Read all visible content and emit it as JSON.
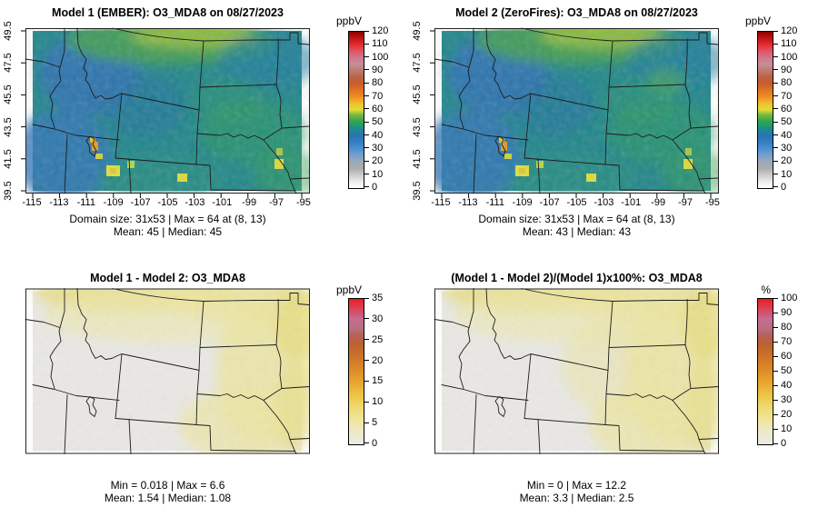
{
  "panels": [
    {
      "title": "Model 1 (EMBER): O3_MDA8 on 08/27/2023",
      "colorbar_unit": "ppbV",
      "x_tick_labels": [
        "-115",
        "-113",
        "-111",
        "-109",
        "-107",
        "-105",
        "-103",
        "-101",
        "-99",
        "-97",
        "-95"
      ],
      "y_tick_labels_top_to_bottom": [
        "49.5",
        "47.5",
        "45.5",
        "43.5",
        "41.5",
        "39.5"
      ],
      "colorbar_tick_labels_top_to_bottom": [
        "120",
        "110",
        "100",
        "90",
        "80",
        "70",
        "60",
        "50",
        "40",
        "30",
        "20",
        "10",
        "0"
      ],
      "stats_line1": "Domain size: 31x53 | Max = 64 at (8, 13)",
      "stats_line2": "Mean: 45 |  Median: 45"
    },
    {
      "title": "Model 2 (ZeroFires): O3_MDA8 on 08/27/2023",
      "colorbar_unit": "ppbV",
      "x_tick_labels": [
        "-115",
        "-113",
        "-111",
        "-109",
        "-107",
        "-105",
        "-103",
        "-101",
        "-99",
        "-97",
        "-95"
      ],
      "y_tick_labels_top_to_bottom": [
        "49.5",
        "47.5",
        "45.5",
        "43.5",
        "41.5",
        "39.5"
      ],
      "colorbar_tick_labels_top_to_bottom": [
        "120",
        "110",
        "100",
        "90",
        "80",
        "70",
        "60",
        "50",
        "40",
        "30",
        "20",
        "10",
        "0"
      ],
      "stats_line1": "Domain size: 31x53 | Max = 64 at (8, 13)",
      "stats_line2": "Mean: 43 |  Median: 43"
    },
    {
      "title": "Model 1 - Model 2: O3_MDA8",
      "colorbar_unit": "ppbV",
      "colorbar_tick_labels_top_to_bottom": [
        "35",
        "30",
        "25",
        "20",
        "15",
        "10",
        "5",
        "0"
      ],
      "stats_line1": "Min = 0.018 | Max = 6.6",
      "stats_line2": "Mean: 1.54 |  Median: 1.08"
    },
    {
      "title": "(Model 1 - Model 2)/(Model 1)x100%: O3_MDA8",
      "colorbar_unit": "%",
      "colorbar_tick_labels_top_to_bottom": [
        "100",
        "90",
        "80",
        "70",
        "60",
        "50",
        "40",
        "30",
        "20",
        "10",
        "0"
      ],
      "stats_line1": "Min = 0 | Max = 12.2",
      "stats_line2": "Mean: 3.3 |  Median: 2.5"
    }
  ],
  "chart_data": [
    {
      "type": "heatmap",
      "title": "Model 1 (EMBER): O3_MDA8 on 08/27/2023",
      "variable": "O3_MDA8",
      "model": "Model 1 (EMBER)",
      "date": "08/27/2023",
      "x_axis": {
        "meaning": "longitude",
        "ticks": [
          -115,
          -113,
          -111,
          -109,
          -107,
          -105,
          -103,
          -101,
          -99,
          -97,
          -95
        ],
        "range": [
          -115,
          -95
        ]
      },
      "y_axis": {
        "meaning": "latitude",
        "ticks": [
          39.5,
          41.5,
          43.5,
          45.5,
          47.5,
          49.5
        ],
        "range": [
          39.5,
          49.5
        ]
      },
      "colorbar": {
        "units": "ppbV",
        "min": 0,
        "max": 120,
        "tick_step": 10,
        "position": "right",
        "colors_low_to_high": [
          "#ffffff",
          "#acacac",
          "#4d92d3",
          "#2b73b4",
          "#209a70",
          "#dcde36",
          "#ed8926",
          "#c75d2a",
          "#c78f92",
          "#e63c45",
          "#8c0000"
        ]
      },
      "stats": {
        "domain_size": "31x53",
        "max": 64,
        "max_at": "(8, 13)",
        "mean": 45,
        "median": 45
      },
      "map_region": "US northern Rockies / Great Plains (Idaho, Montana, Wyoming, Dakotas, Nebraska)",
      "grid": false
    },
    {
      "type": "heatmap",
      "title": "Model 2 (ZeroFires): O3_MDA8 on 08/27/2023",
      "variable": "O3_MDA8",
      "model": "Model 2 (ZeroFires)",
      "date": "08/27/2023",
      "x_axis": {
        "meaning": "longitude",
        "ticks": [
          -115,
          -113,
          -111,
          -109,
          -107,
          -105,
          -103,
          -101,
          -99,
          -97,
          -95
        ],
        "range": [
          -115,
          -95
        ]
      },
      "y_axis": {
        "meaning": "latitude",
        "ticks": [
          39.5,
          41.5,
          43.5,
          45.5,
          47.5,
          49.5
        ],
        "range": [
          39.5,
          49.5
        ]
      },
      "colorbar": {
        "units": "ppbV",
        "min": 0,
        "max": 120,
        "tick_step": 10,
        "position": "right",
        "colors_low_to_high": [
          "#ffffff",
          "#acacac",
          "#4d92d3",
          "#2b73b4",
          "#209a70",
          "#dcde36",
          "#ed8926",
          "#c75d2a",
          "#c78f92",
          "#e63c45",
          "#8c0000"
        ]
      },
      "stats": {
        "domain_size": "31x53",
        "max": 64,
        "max_at": "(8, 13)",
        "mean": 43,
        "median": 43
      },
      "map_region": "US northern Rockies / Great Plains (Idaho, Montana, Wyoming, Dakotas, Nebraska)",
      "grid": false
    },
    {
      "type": "heatmap",
      "title": "Model 1 - Model 2: O3_MDA8",
      "variable": "O3_MDA8 difference",
      "x_axis": {
        "meaning": "longitude",
        "ticks": [],
        "range": [
          -115,
          -95
        ]
      },
      "y_axis": {
        "meaning": "latitude",
        "ticks": [],
        "range": [
          39.5,
          49.5
        ]
      },
      "colorbar": {
        "units": "ppbV",
        "min": 0,
        "max": 35,
        "tick_step": 5,
        "position": "right",
        "colors_low_to_high": [
          "#ebebe7",
          "#f0e59b",
          "#ecc443",
          "#dc8c28",
          "#bd6132",
          "#ba6f82",
          "#d44f6b",
          "#e81a26"
        ]
      },
      "stats": {
        "min": 0.018,
        "max": 6.6,
        "mean": 1.54,
        "median": 1.08
      },
      "pattern": "largest differences (pale yellow) over northern Montana and eastern Dakotas/Nebraska; near-zero (gray) over Idaho, Wyoming, Utah",
      "grid": false
    },
    {
      "type": "heatmap",
      "title": "(Model 1 - Model 2)/(Model 1)x100%: O3_MDA8",
      "variable": "O3_MDA8 percent difference",
      "x_axis": {
        "meaning": "longitude",
        "ticks": [],
        "range": [
          -115,
          -95
        ]
      },
      "y_axis": {
        "meaning": "latitude",
        "ticks": [],
        "range": [
          39.5,
          49.5
        ]
      },
      "colorbar": {
        "units": "%",
        "min": 0,
        "max": 100,
        "tick_step": 10,
        "position": "right",
        "colors_low_to_high": [
          "#ebebe7",
          "#f0e59b",
          "#ecc443",
          "#dc8c28",
          "#bd6132",
          "#ba6f82",
          "#d44f6b",
          "#e81a26"
        ]
      },
      "stats": {
        "min": 0,
        "max": 12.2,
        "mean": 3.3,
        "median": 2.5
      },
      "pattern": "largest percent differences (pale yellow) over northern Montana and eastern Dakotas/Nebraska; near-zero (gray) over Idaho, Wyoming, Utah",
      "grid": false
    }
  ],
  "colors": {
    "background": "#ffffff",
    "map_base_concentration": "#20868a",
    "map_base_difference": "#e9e8e4",
    "state_border": "#1c1c1c",
    "text": "#000000"
  }
}
